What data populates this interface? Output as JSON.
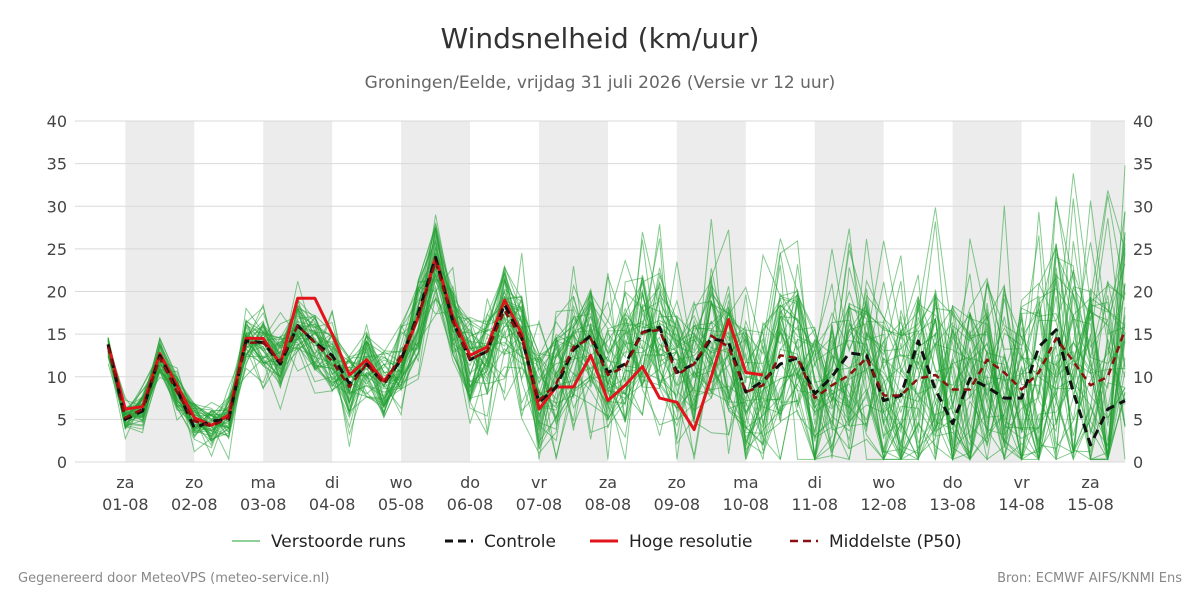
{
  "title": "Windsnelheid (km/uur)",
  "subtitle": "Groningen/Eelde, vrijdag 31 juli 2026 (Versie vr 12 uur)",
  "footer_left": "Gegenereerd door MeteoVPS (meteo-service.nl)",
  "footer_right": "Bron: ECMWF AIFS/KNMI Ens",
  "colors": {
    "ensemble": "#22a033",
    "control": "#111111",
    "hires": "#e0141a",
    "median": "#8b1010",
    "shade": "#ececec",
    "grid": "#d9d9d9"
  },
  "chart_data": {
    "type": "line",
    "title": "Windsnelheid (km/uur)",
    "ylim": [
      0,
      40
    ],
    "yticks": [
      0,
      5,
      10,
      15,
      20,
      25,
      30,
      35,
      40
    ],
    "xlim": [
      -0.73,
      14.5
    ],
    "grid": true,
    "legend_position": "bottom",
    "day_labels": [
      {
        "day": "za",
        "date": "01-08"
      },
      {
        "day": "zo",
        "date": "02-08"
      },
      {
        "day": "ma",
        "date": "03-08"
      },
      {
        "day": "di",
        "date": "04-08"
      },
      {
        "day": "wo",
        "date": "05-08"
      },
      {
        "day": "do",
        "date": "06-08"
      },
      {
        "day": "vr",
        "date": "07-08"
      },
      {
        "day": "za",
        "date": "08-08"
      },
      {
        "day": "zo",
        "date": "09-08"
      },
      {
        "day": "ma",
        "date": "10-08"
      },
      {
        "day": "di",
        "date": "11-08"
      },
      {
        "day": "wo",
        "date": "12-08"
      },
      {
        "day": "do",
        "date": "13-08"
      },
      {
        "day": "vr",
        "date": "14-08"
      },
      {
        "day": "za",
        "date": "15-08"
      }
    ],
    "step_days": 0.25,
    "x_start": -0.25,
    "legend": [
      {
        "key": "ensemble",
        "label": "Verstoorde runs",
        "style": "thin"
      },
      {
        "key": "control",
        "label": "Controle",
        "style": "dashed"
      },
      {
        "key": "hires",
        "label": "Hoge resolutie",
        "style": "solid"
      },
      {
        "key": "median",
        "label": "Middelste (P50)",
        "style": "dashed"
      }
    ],
    "series": [
      {
        "name": "Hoge resolutie",
        "key": "hires",
        "values": [
          13.8,
          6.2,
          6.5,
          12.7,
          9,
          5.2,
          4.3,
          5.5,
          14.5,
          14.5,
          11.5,
          19.2,
          19.2,
          15,
          10.2,
          12,
          9.5,
          12,
          17,
          24,
          17,
          12.5,
          13.5,
          19,
          15,
          6.2,
          8.8,
          8.8,
          12.5,
          7.2,
          9,
          11.2,
          7.5,
          7,
          3.8,
          10,
          16.7,
          10.5,
          10.2
        ]
      },
      {
        "name": "Controle",
        "key": "control",
        "values": [
          13.8,
          5,
          6,
          12.5,
          8.5,
          4,
          4.8,
          5,
          14.2,
          14,
          11.5,
          16,
          14,
          12.5,
          9.2,
          11.5,
          9.2,
          12,
          17.5,
          24,
          16.5,
          12,
          13,
          18.5,
          14.5,
          7,
          8.8,
          13.2,
          14.8,
          10.5,
          11.5,
          15.2,
          15.8,
          10.5,
          11.5,
          14.5,
          14,
          8.2,
          9.5,
          11.5,
          12.2,
          8,
          10,
          12.8,
          12.5,
          7.2,
          7.8,
          14.2,
          8.5,
          4.5,
          9.8,
          8.8,
          7.5,
          7.5,
          13.5,
          15.5,
          8.2,
          2,
          6.2,
          7.2
        ]
      },
      {
        "name": "Middelste (P50)",
        "key": "median",
        "values": [
          13.5,
          5.2,
          6.2,
          12.2,
          8.2,
          4.8,
          4.2,
          5.2,
          14,
          14,
          11.8,
          16,
          14,
          11.8,
          8.8,
          11.5,
          9.2,
          12.5,
          17,
          23.5,
          16.5,
          12,
          13,
          17.8,
          14.5,
          7.2,
          9.2,
          13.5,
          14.5,
          10.2,
          11.2,
          15.2,
          15.5,
          10.2,
          11.5,
          14.8,
          13.5,
          8.2,
          9,
          12.5,
          12.2,
          7.5,
          9,
          10.2,
          12.2,
          7.8,
          7.8,
          9.8,
          10.2,
          8.5,
          8.5,
          12,
          10.5,
          8.5,
          10.5,
          14.5,
          11.8,
          9,
          10,
          15.5
        ]
      }
    ]
  }
}
